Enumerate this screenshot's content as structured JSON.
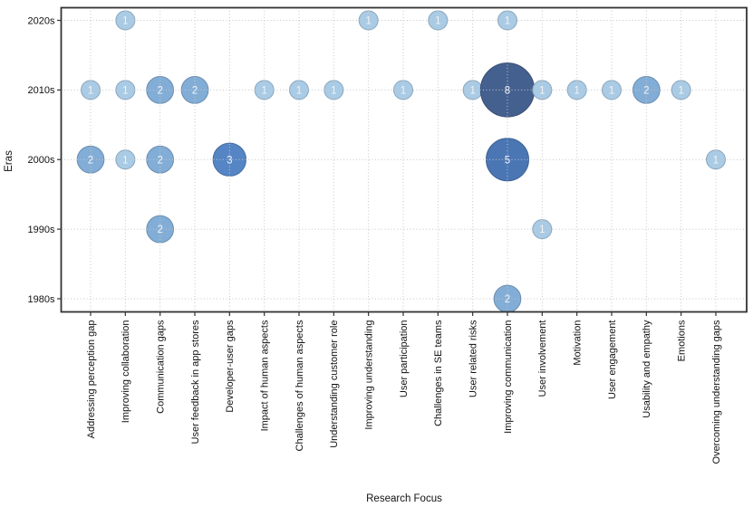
{
  "chart_data": {
    "type": "scatter",
    "subtype": "bubble",
    "title": "",
    "xlabel": "Research Focus",
    "ylabel": "Eras",
    "x_categories": [
      "Addressing perception gap",
      "Improving collaboration",
      "Communication gaps",
      "User feedback in app stores",
      "Developer-user gaps",
      "Impact of human aspects",
      "Challenges of human aspects",
      "Understanding customer role",
      "Improving understanding",
      "User participation",
      "Challenges in SE teams",
      "User related risks",
      "Improving communication",
      "User involvement",
      "Motivation",
      "User engagement",
      "Usability and empathy",
      "Emotions",
      "Overcoming understanding gaps"
    ],
    "y_categories": [
      "1980s",
      "1990s",
      "2000s",
      "2010s",
      "2020s"
    ],
    "points": [
      {
        "x": "Addressing perception gap",
        "y": "2010s",
        "count": 1
      },
      {
        "x": "Addressing perception gap",
        "y": "2000s",
        "count": 2
      },
      {
        "x": "Improving collaboration",
        "y": "2020s",
        "count": 1
      },
      {
        "x": "Improving collaboration",
        "y": "2010s",
        "count": 1
      },
      {
        "x": "Improving collaboration",
        "y": "2000s",
        "count": 1
      },
      {
        "x": "Communication gaps",
        "y": "2010s",
        "count": 2
      },
      {
        "x": "Communication gaps",
        "y": "2000s",
        "count": 2
      },
      {
        "x": "Communication gaps",
        "y": "1990s",
        "count": 2
      },
      {
        "x": "User feedback in app stores",
        "y": "2010s",
        "count": 2
      },
      {
        "x": "Developer-user gaps",
        "y": "2000s",
        "count": 3
      },
      {
        "x": "Impact of human aspects",
        "y": "2010s",
        "count": 1
      },
      {
        "x": "Challenges of human aspects",
        "y": "2010s",
        "count": 1
      },
      {
        "x": "Understanding customer role",
        "y": "2010s",
        "count": 1
      },
      {
        "x": "Improving understanding",
        "y": "2020s",
        "count": 1
      },
      {
        "x": "User participation",
        "y": "2010s",
        "count": 1
      },
      {
        "x": "Challenges in SE teams",
        "y": "2020s",
        "count": 1
      },
      {
        "x": "User related risks",
        "y": "2010s",
        "count": 1
      },
      {
        "x": "Improving communication",
        "y": "2020s",
        "count": 1
      },
      {
        "x": "Improving communication",
        "y": "2010s",
        "count": 8
      },
      {
        "x": "Improving communication",
        "y": "2000s",
        "count": 5
      },
      {
        "x": "Improving communication",
        "y": "1980s",
        "count": 2
      },
      {
        "x": "User involvement",
        "y": "2010s",
        "count": 1
      },
      {
        "x": "User involvement",
        "y": "1990s",
        "count": 1
      },
      {
        "x": "Motivation",
        "y": "2010s",
        "count": 1
      },
      {
        "x": "User engagement",
        "y": "2010s",
        "count": 1
      },
      {
        "x": "Usability and empathy",
        "y": "2010s",
        "count": 2
      },
      {
        "x": "Emotions",
        "y": "2010s",
        "count": 1
      },
      {
        "x": "Overcoming understanding gaps",
        "y": "2000s",
        "count": 1
      }
    ],
    "bubble_color_by_count": {
      "1": "#a9cbe5",
      "2": "#82add6",
      "3": "#5585c4",
      "5": "#4a76b4",
      "8": "#44608f"
    },
    "bubble_label_color": "#f0f4f8",
    "grid": true,
    "grid_style": "dotted",
    "grid_color": "#c6c6c6",
    "spine_color": "#333333",
    "text_color": "#111111",
    "background": "#ffffff"
  }
}
